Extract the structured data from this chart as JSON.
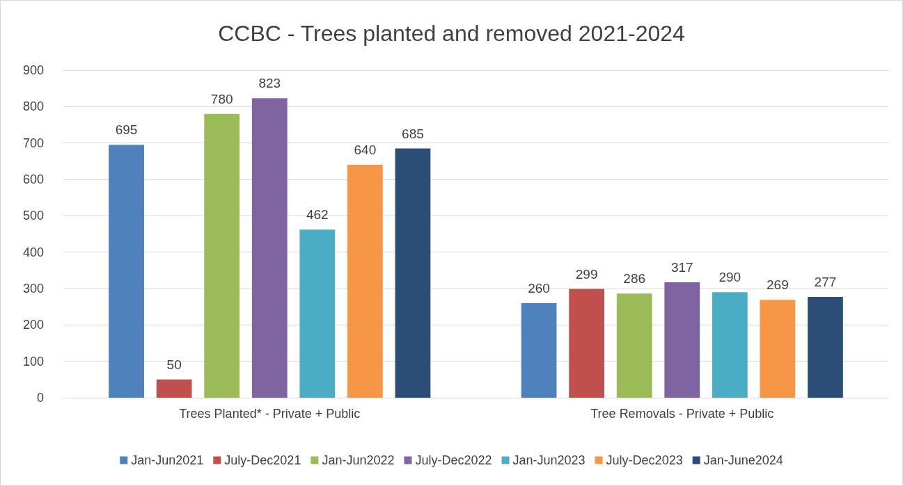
{
  "chart_data": {
    "type": "bar",
    "title": "CCBC - Trees planted and removed 2021-2024",
    "categories": [
      "Trees Planted* - Private + Public",
      "Tree Removals - Private + Public"
    ],
    "series": [
      {
        "name": "Jan-Jun2021",
        "color": "#4f81bd",
        "values": [
          695,
          260
        ]
      },
      {
        "name": "July-Dec2021",
        "color": "#c0504d",
        "values": [
          50,
          299
        ]
      },
      {
        "name": "Jan-Jun2022",
        "color": "#9bbb59",
        "values": [
          780,
          286
        ]
      },
      {
        "name": "July-Dec2022",
        "color": "#8064a2",
        "values": [
          823,
          317
        ]
      },
      {
        "name": "Jan-Jun2023",
        "color": "#4bacc6",
        "values": [
          462,
          290
        ]
      },
      {
        "name": "July-Dec2023",
        "color": "#f79646",
        "values": [
          640,
          269
        ]
      },
      {
        "name": "Jan-June2024",
        "color": "#2c4d75",
        "values": [
          685,
          277
        ]
      }
    ],
    "ylim": [
      0,
      900
    ],
    "yticks": [
      0,
      100,
      200,
      300,
      400,
      500,
      600,
      700,
      800,
      900
    ],
    "grid": "y",
    "legend": "bottom",
    "data_labels": true
  }
}
